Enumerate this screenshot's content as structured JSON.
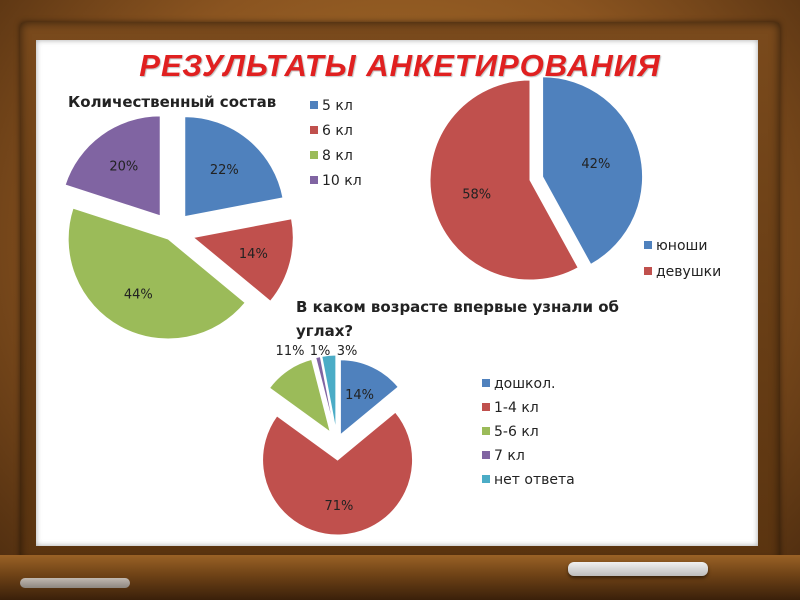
{
  "page": {
    "title": "РЕЗУЛЬТАТЫ  АНКЕТИРОВАНИЯ"
  },
  "chart_data": [
    {
      "type": "pie",
      "title": "Количественный состав",
      "categories": [
        "5 кл",
        "6 кл",
        "8 кл",
        "10 кл"
      ],
      "values": [
        22,
        14,
        44,
        20
      ],
      "labels": [
        "22%",
        "14%",
        "44%",
        "20%"
      ],
      "colors": [
        "#4f81bd",
        "#c0504d",
        "#9bbb59",
        "#8064a2"
      ],
      "legend": "right"
    },
    {
      "type": "pie",
      "title": "",
      "categories": [
        "юноши",
        "девушки"
      ],
      "values": [
        42,
        58
      ],
      "labels": [
        "42%",
        "58%"
      ],
      "colors": [
        "#4f81bd",
        "#c0504d"
      ],
      "legend": "bottom-right"
    },
    {
      "type": "pie",
      "title": "В каком возрасте впервые узнали об углах?",
      "categories": [
        "дошкол.",
        "1-4 кл",
        "5-6 кл",
        "7 кл",
        "нет ответа"
      ],
      "values": [
        14,
        71,
        11,
        1,
        3
      ],
      "labels": [
        "14%",
        "71%",
        "11%",
        "1%",
        "3%"
      ],
      "colors": [
        "#4f81bd",
        "#c0504d",
        "#9bbb59",
        "#8064a2",
        "#4bacc6"
      ],
      "legend": "right"
    }
  ]
}
